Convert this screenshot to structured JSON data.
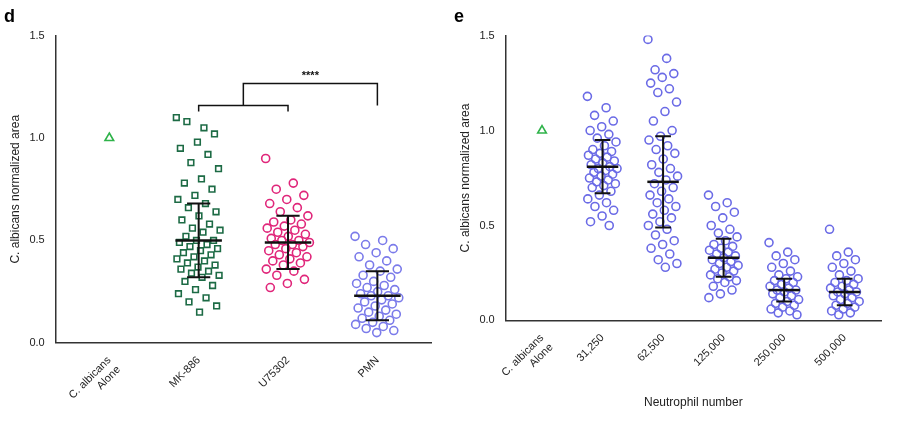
{
  "chart_data": [
    {
      "type": "scatter",
      "title": "d",
      "y_label": "C. albicans normalized area",
      "categories": [
        [
          "C. albicans",
          "Alone"
        ],
        "MK-886",
        "U75302",
        "PMN"
      ],
      "groups": [
        {
          "color": "#2fb34a",
          "marker": "triangle",
          "values": [
            1.0
          ]
        },
        {
          "color": "#1d6b45",
          "marker": "square",
          "mean": 0.5,
          "sd": 0.18,
          "values": [
            1.1,
            1.05,
            1.08,
            1.02,
            0.98,
            0.95,
            0.92,
            0.88,
            0.85,
            0.8,
            0.78,
            0.75,
            0.72,
            0.7,
            0.68,
            0.66,
            0.64,
            0.62,
            0.6,
            0.58,
            0.56,
            0.55,
            0.54,
            0.52,
            0.5,
            0.5,
            0.49,
            0.48,
            0.47,
            0.46,
            0.45,
            0.44,
            0.43,
            0.42,
            0.41,
            0.4,
            0.39,
            0.38,
            0.37,
            0.36,
            0.35,
            0.34,
            0.33,
            0.32,
            0.3,
            0.28,
            0.26,
            0.24,
            0.22,
            0.2,
            0.18,
            0.15
          ]
        },
        {
          "color": "#e0267a",
          "marker": "circle",
          "mean": 0.49,
          "sd": 0.13,
          "values": [
            0.9,
            0.78,
            0.75,
            0.72,
            0.7,
            0.68,
            0.66,
            0.64,
            0.62,
            0.6,
            0.59,
            0.58,
            0.57,
            0.56,
            0.55,
            0.54,
            0.53,
            0.52,
            0.51,
            0.5,
            0.5,
            0.49,
            0.48,
            0.48,
            0.47,
            0.46,
            0.45,
            0.44,
            0.43,
            0.42,
            0.41,
            0.4,
            0.39,
            0.38,
            0.36,
            0.35,
            0.33,
            0.31,
            0.29,
            0.27
          ]
        },
        {
          "color": "#7b7bea",
          "marker": "circle",
          "mean": 0.23,
          "sd": 0.12,
          "values": [
            0.52,
            0.5,
            0.48,
            0.46,
            0.44,
            0.42,
            0.4,
            0.38,
            0.36,
            0.35,
            0.33,
            0.32,
            0.3,
            0.29,
            0.28,
            0.27,
            0.26,
            0.25,
            0.24,
            0.23,
            0.23,
            0.22,
            0.21,
            0.2,
            0.19,
            0.18,
            0.17,
            0.16,
            0.15,
            0.14,
            0.13,
            0.12,
            0.11,
            0.1,
            0.09,
            0.08,
            0.07,
            0.06,
            0.05
          ]
        }
      ],
      "ylim": [
        0,
        1.5
      ],
      "yticks": [
        {
          "value": 0,
          "label": "0.0"
        },
        {
          "value": 0.5,
          "label": "0.5"
        },
        {
          "value": 1,
          "label": "1.0"
        },
        {
          "value": 1.5,
          "label": "1.5"
        }
      ],
      "grid": false,
      "annotations": [
        {
          "text": "****",
          "from": [
            "MK-886",
            "U75302"
          ],
          "to": "PMN"
        }
      ]
    },
    {
      "type": "scatter",
      "title": "e",
      "y_label": "C. albicans normalized area",
      "x_label": "Neutrophil number",
      "categories": [
        [
          "C. albicans",
          "Alone"
        ],
        "31,250",
        "62,500",
        "125,000",
        "250,000",
        "500,000"
      ],
      "groups": [
        {
          "color": "#2fb34a",
          "marker": "triangle",
          "values": [
            1.0
          ]
        },
        {
          "color": "#6b6be6",
          "marker": "circle",
          "mean": 0.81,
          "sd": 0.14,
          "values": [
            1.18,
            1.12,
            1.08,
            1.05,
            1.02,
            1.0,
            0.98,
            0.96,
            0.94,
            0.92,
            0.9,
            0.89,
            0.88,
            0.87,
            0.86,
            0.85,
            0.84,
            0.83,
            0.82,
            0.81,
            0.8,
            0.8,
            0.79,
            0.78,
            0.77,
            0.76,
            0.75,
            0.74,
            0.73,
            0.72,
            0.71,
            0.7,
            0.68,
            0.66,
            0.64,
            0.62,
            0.6,
            0.58,
            0.55,
            0.52,
            0.5
          ]
        },
        {
          "color": "#6b6be6",
          "marker": "circle",
          "mean": 0.73,
          "sd": 0.24,
          "values": [
            1.48,
            1.38,
            1.32,
            1.3,
            1.28,
            1.25,
            1.22,
            1.2,
            1.15,
            1.1,
            1.05,
            1.0,
            0.97,
            0.95,
            0.92,
            0.9,
            0.88,
            0.85,
            0.82,
            0.8,
            0.78,
            0.76,
            0.74,
            0.72,
            0.7,
            0.68,
            0.66,
            0.64,
            0.62,
            0.6,
            0.58,
            0.56,
            0.54,
            0.52,
            0.5,
            0.48,
            0.45,
            0.42,
            0.4,
            0.38,
            0.35,
            0.32,
            0.3,
            0.28
          ]
        },
        {
          "color": "#6b6be6",
          "marker": "circle",
          "mean": 0.33,
          "sd": 0.1,
          "values": [
            0.66,
            0.62,
            0.6,
            0.57,
            0.54,
            0.5,
            0.48,
            0.46,
            0.44,
            0.42,
            0.4,
            0.39,
            0.38,
            0.37,
            0.36,
            0.35,
            0.34,
            0.33,
            0.32,
            0.31,
            0.3,
            0.29,
            0.28,
            0.27,
            0.26,
            0.25,
            0.24,
            0.23,
            0.22,
            0.21,
            0.2,
            0.18,
            0.16,
            0.14,
            0.12
          ]
        },
        {
          "color": "#6b6be6",
          "marker": "circle",
          "mean": 0.16,
          "sd": 0.06,
          "values": [
            0.41,
            0.36,
            0.34,
            0.32,
            0.3,
            0.28,
            0.26,
            0.24,
            0.23,
            0.22,
            0.21,
            0.2,
            0.19,
            0.18,
            0.17,
            0.16,
            0.16,
            0.15,
            0.14,
            0.13,
            0.12,
            0.11,
            0.1,
            0.09,
            0.08,
            0.07,
            0.06,
            0.05,
            0.04,
            0.03
          ]
        },
        {
          "color": "#6b6be6",
          "marker": "circle",
          "mean": 0.15,
          "sd": 0.07,
          "values": [
            0.48,
            0.36,
            0.34,
            0.32,
            0.3,
            0.28,
            0.26,
            0.24,
            0.22,
            0.21,
            0.2,
            0.19,
            0.18,
            0.17,
            0.16,
            0.15,
            0.15,
            0.14,
            0.13,
            0.12,
            0.11,
            0.1,
            0.09,
            0.08,
            0.07,
            0.06,
            0.05,
            0.04,
            0.03
          ]
        }
      ],
      "ylim": [
        0,
        1.5
      ],
      "yticks": [
        {
          "value": 0,
          "label": "0.0"
        },
        {
          "value": 0.5,
          "label": "0.5"
        },
        {
          "value": 1,
          "label": "1.0"
        },
        {
          "value": 1.5,
          "label": "1.5"
        }
      ],
      "grid": false
    }
  ]
}
